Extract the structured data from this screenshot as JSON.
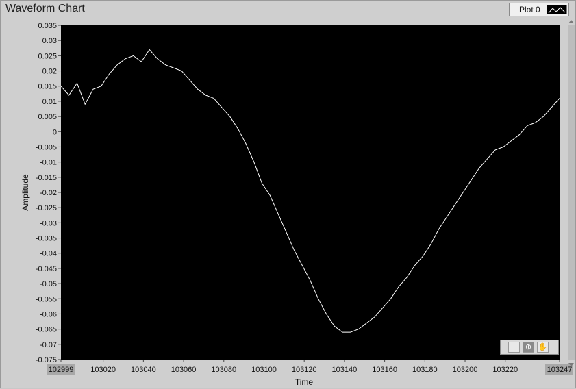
{
  "window": {
    "title": "Waveform Chart"
  },
  "legend": {
    "plot_label": "Plot 0"
  },
  "palette": {
    "tools": [
      "cursor-tool",
      "zoom-tool",
      "pan-tool"
    ]
  },
  "colors": {
    "plot_background": "#000000",
    "trace": "#ffffff",
    "panel": "#cfcfcf"
  },
  "chart_data": {
    "type": "line",
    "title": "Waveform Chart",
    "xlabel": "Time",
    "ylabel": "Amplitude",
    "xlim": [
      102999,
      103247
    ],
    "ylim": [
      -0.075,
      0.035
    ],
    "xticks": [
      "102999",
      "103020",
      "103040",
      "103060",
      "103080",
      "103100",
      "103120",
      "103140",
      "103160",
      "103180",
      "103200",
      "103220",
      "103247"
    ],
    "yticks": [
      "0.035",
      "0.03",
      "0.025",
      "0.02",
      "0.015",
      "0.01",
      "0.005",
      "0",
      "-0.005",
      "-0.01",
      "-0.015",
      "-0.02",
      "-0.025",
      "-0.03",
      "-0.035",
      "-0.04",
      "-0.045",
      "-0.05",
      "-0.055",
      "-0.06",
      "-0.065",
      "-0.07",
      "-0.075"
    ],
    "grid": false,
    "legend": "top-right",
    "series": [
      {
        "name": "Plot 0",
        "x": [
          102999,
          103003,
          103007,
          103011,
          103015,
          103019,
          103023,
          103027,
          103031,
          103035,
          103039,
          103043,
          103047,
          103051,
          103055,
          103059,
          103063,
          103067,
          103071,
          103075,
          103079,
          103083,
          103087,
          103091,
          103095,
          103099,
          103103,
          103107,
          103111,
          103115,
          103119,
          103123,
          103127,
          103131,
          103135,
          103139,
          103143,
          103147,
          103151,
          103155,
          103159,
          103163,
          103167,
          103171,
          103175,
          103179,
          103183,
          103187,
          103191,
          103195,
          103199,
          103203,
          103207,
          103211,
          103215,
          103219,
          103223,
          103227,
          103231,
          103235,
          103239,
          103243,
          103247
        ],
        "y": [
          0.015,
          0.012,
          0.016,
          0.009,
          0.014,
          0.015,
          0.019,
          0.022,
          0.024,
          0.025,
          0.023,
          0.027,
          0.024,
          0.022,
          0.021,
          0.02,
          0.017,
          0.014,
          0.012,
          0.011,
          0.008,
          0.005,
          0.001,
          -0.004,
          -0.01,
          -0.017,
          -0.021,
          -0.027,
          -0.033,
          -0.039,
          -0.044,
          -0.049,
          -0.055,
          -0.06,
          -0.064,
          -0.066,
          -0.066,
          -0.065,
          -0.063,
          -0.061,
          -0.058,
          -0.055,
          -0.051,
          -0.048,
          -0.044,
          -0.041,
          -0.037,
          -0.032,
          -0.028,
          -0.024,
          -0.02,
          -0.016,
          -0.012,
          -0.009,
          -0.006,
          -0.005,
          -0.003,
          -0.001,
          0.002,
          0.003,
          0.005,
          0.008,
          0.011
        ]
      }
    ]
  }
}
